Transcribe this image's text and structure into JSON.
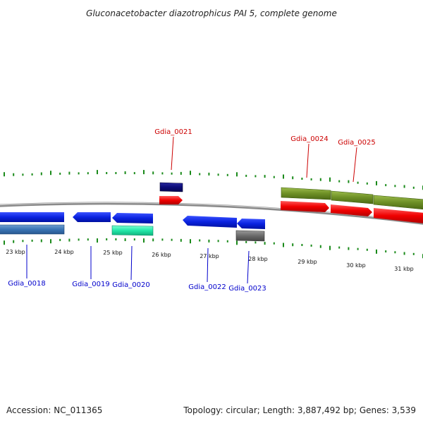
{
  "title": "Gluconacetobacter diazotrophicus PAI 5, complete genome",
  "footer": {
    "accession": "Accession: NC_011365",
    "summary": "Topology: circular; Length: 3,887,492 bp; Genes: 3,539"
  },
  "colors": {
    "backbone": "#8a8a8a",
    "gc_tick": "#1a8a1a",
    "forward_label": "#cc0000",
    "reverse_label": "#0000cc"
  },
  "scale_labels": [
    "23 kbp",
    "24 kbp",
    "25 kbp",
    "26 kbp",
    "27 kbp",
    "28 kbp",
    "29 kbp",
    "30 kbp",
    "31 kbp"
  ],
  "genes": [
    {
      "id": "Gdia_0018",
      "strand": "reverse"
    },
    {
      "id": "Gdia_0019",
      "strand": "reverse"
    },
    {
      "id": "Gdia_0020",
      "strand": "reverse"
    },
    {
      "id": "Gdia_0021",
      "strand": "forward"
    },
    {
      "id": "Gdia_0022",
      "strand": "reverse"
    },
    {
      "id": "Gdia_0023",
      "strand": "reverse"
    },
    {
      "id": "Gdia_0024",
      "strand": "forward"
    },
    {
      "id": "Gdia_0025",
      "strand": "forward"
    }
  ]
}
